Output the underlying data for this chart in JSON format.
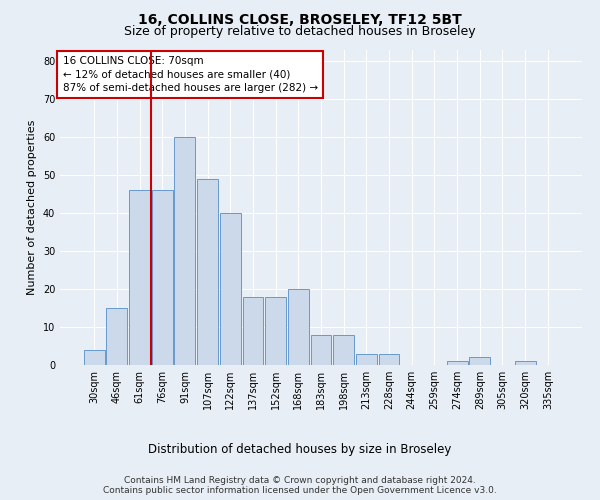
{
  "title": "16, COLLINS CLOSE, BROSELEY, TF12 5BT",
  "subtitle": "Size of property relative to detached houses in Broseley",
  "xlabel": "Distribution of detached houses by size in Broseley",
  "ylabel": "Number of detached properties",
  "bar_labels": [
    "30sqm",
    "46sqm",
    "61sqm",
    "76sqm",
    "91sqm",
    "107sqm",
    "122sqm",
    "137sqm",
    "152sqm",
    "168sqm",
    "183sqm",
    "198sqm",
    "213sqm",
    "228sqm",
    "244sqm",
    "259sqm",
    "274sqm",
    "289sqm",
    "305sqm",
    "320sqm",
    "335sqm"
  ],
  "bar_values": [
    4,
    15,
    46,
    46,
    60,
    49,
    40,
    18,
    18,
    20,
    8,
    8,
    3,
    3,
    0,
    0,
    1,
    2,
    0,
    1,
    0
  ],
  "bar_color": "#ccd9ea",
  "bar_edgecolor": "#6699cc",
  "vline_color": "#cc0000",
  "annotation_text": "16 COLLINS CLOSE: 70sqm\n← 12% of detached houses are smaller (40)\n87% of semi-detached houses are larger (282) →",
  "annotation_box_edgecolor": "#cc0000",
  "annotation_box_facecolor": "#ffffff",
  "ylim": [
    0,
    83
  ],
  "yticks": [
    0,
    10,
    20,
    30,
    40,
    50,
    60,
    70,
    80
  ],
  "bg_color": "#e8eef5",
  "plot_bg_color": "#e8eef5",
  "footer_text": "Contains HM Land Registry data © Crown copyright and database right 2024.\nContains public sector information licensed under the Open Government Licence v3.0.",
  "title_fontsize": 10,
  "subtitle_fontsize": 9,
  "xlabel_fontsize": 8.5,
  "ylabel_fontsize": 8,
  "annotation_fontsize": 7.5,
  "footer_fontsize": 6.5,
  "tick_fontsize": 7
}
